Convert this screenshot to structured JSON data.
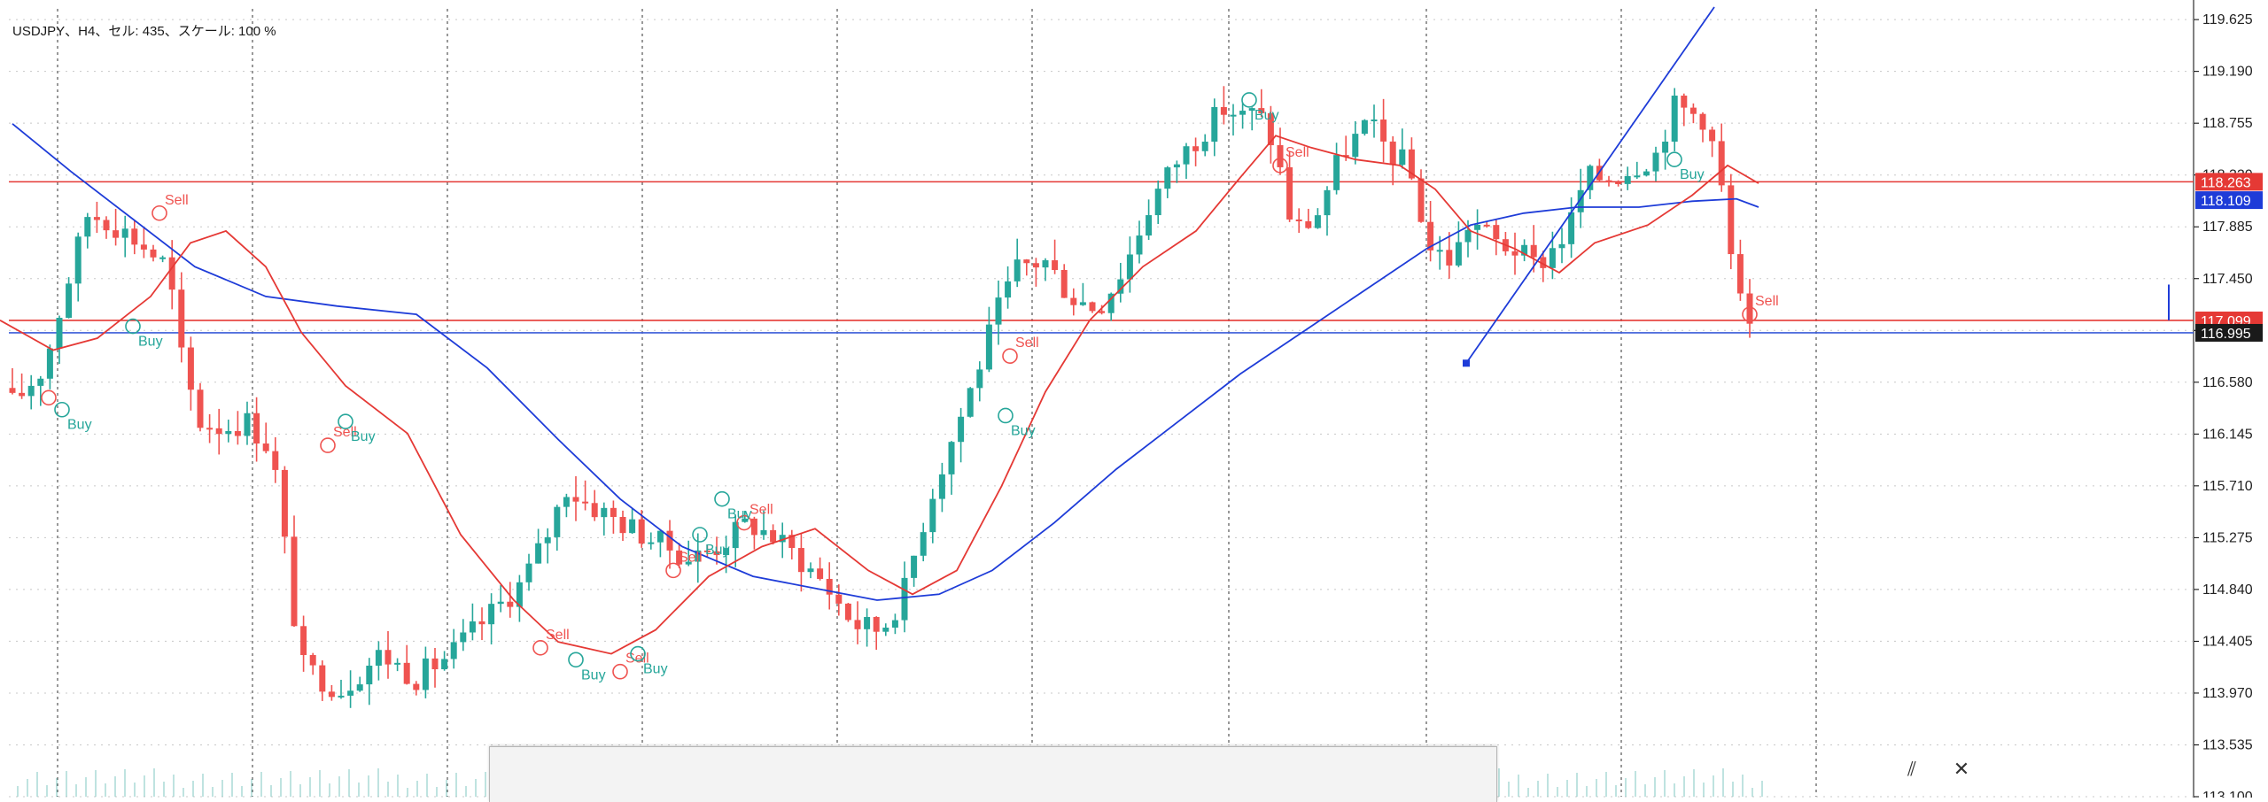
{
  "window": {
    "symbol_label": "USDJPY、H4、セル: 435、スケール: 100 %"
  },
  "colors": {
    "bull": "#26a69a",
    "bear": "#ef5350",
    "ma_fast": "#e53935",
    "ma_slow": "#1e3cd8",
    "hline": "#e53935",
    "hline_blue": "#3a5bd8",
    "grid": "#c8c8c8",
    "axis_text": "#222222"
  },
  "panel": {
    "pin_icon": "pin-icon",
    "close_icon": "close-icon",
    "pin_glyph": "⫽",
    "close_glyph": "✕"
  },
  "chart_data": {
    "type": "candlestick",
    "title": "",
    "xlabel": "",
    "ylabel": "",
    "ylim": [
      113.1,
      119.73
    ],
    "y_ticks": [
      "119.625",
      "119.190",
      "118.755",
      "118.320",
      "117.885",
      "117.450",
      "117.015",
      "116.580",
      "116.145",
      "115.710",
      "115.275",
      "114.840",
      "114.405",
      "113.970",
      "113.535",
      "113.100"
    ],
    "grid": "dotted",
    "price_tags": [
      {
        "text": "118.263",
        "value": 118.263,
        "bg": "#e53935",
        "fg": "#ffffff"
      },
      {
        "text": "118.109",
        "value": 118.109,
        "bg": "#1e3cd8",
        "fg": "#ffffff"
      },
      {
        "text": "117.099",
        "value": 117.099,
        "bg": "#e53935",
        "fg": "#ffffff"
      },
      {
        "text": "116.995",
        "value": 116.995,
        "bg": "#1a1a1a",
        "fg": "#ffffff"
      }
    ],
    "horizontal_lines": [
      {
        "value": 118.263,
        "color": "#e53935"
      },
      {
        "value": 117.099,
        "color": "#e53935"
      },
      {
        "value": 116.995,
        "color": "#3a5bd8"
      }
    ],
    "key_points": [
      [
        0,
        116.7
      ],
      [
        25,
        116.4
      ],
      [
        60,
        116.7
      ],
      [
        90,
        117.5
      ],
      [
        110,
        118.0
      ],
      [
        130,
        117.95
      ],
      [
        160,
        117.8
      ],
      [
        200,
        117.55
      ],
      [
        215,
        116.8
      ],
      [
        235,
        116.25
      ],
      [
        262,
        116.2
      ],
      [
        290,
        116.25
      ],
      [
        318,
        116.0
      ],
      [
        350,
        114.2
      ],
      [
        395,
        114.0
      ],
      [
        440,
        114.3
      ],
      [
        480,
        114.1
      ],
      [
        520,
        114.3
      ],
      [
        560,
        114.6
      ],
      [
        600,
        114.9
      ],
      [
        625,
        115.25
      ],
      [
        650,
        115.7
      ],
      [
        665,
        115.6
      ],
      [
        700,
        115.45
      ],
      [
        750,
        115.25
      ],
      [
        790,
        115.1
      ],
      [
        820,
        115.2
      ],
      [
        855,
        115.4
      ],
      [
        880,
        115.3
      ],
      [
        905,
        115.15
      ],
      [
        940,
        114.9
      ],
      [
        975,
        114.55
      ],
      [
        1005,
        114.5
      ],
      [
        1030,
        114.8
      ],
      [
        1060,
        115.6
      ],
      [
        1085,
        116.1
      ],
      [
        1110,
        116.6
      ],
      [
        1135,
        117.15
      ],
      [
        1160,
        117.55
      ],
      [
        1190,
        117.6
      ],
      [
        1220,
        117.3
      ],
      [
        1250,
        117.2
      ],
      [
        1280,
        117.55
      ],
      [
        1310,
        118.1
      ],
      [
        1340,
        118.45
      ],
      [
        1370,
        118.7
      ],
      [
        1395,
        118.9
      ],
      [
        1410,
        118.8
      ],
      [
        1430,
        118.85
      ],
      [
        1450,
        118.55
      ],
      [
        1470,
        117.85
      ],
      [
        1495,
        117.95
      ],
      [
        1525,
        118.5
      ],
      [
        1555,
        118.75
      ],
      [
        1580,
        118.5
      ],
      [
        1600,
        118.4
      ],
      [
        1625,
        117.7
      ],
      [
        1650,
        117.6
      ],
      [
        1670,
        117.95
      ],
      [
        1700,
        117.75
      ],
      [
        1720,
        117.7
      ],
      [
        1745,
        117.55
      ],
      [
        1780,
        117.85
      ],
      [
        1800,
        118.3
      ],
      [
        1830,
        118.3
      ],
      [
        1855,
        118.4
      ],
      [
        1880,
        118.5
      ],
      [
        1900,
        118.9
      ],
      [
        1935,
        118.8
      ],
      [
        1950,
        118.4
      ],
      [
        1965,
        117.6
      ],
      [
        1982,
        117.0
      ]
    ],
    "ma_fast": [
      [
        0,
        117.1
      ],
      [
        60,
        116.85
      ],
      [
        110,
        116.95
      ],
      [
        170,
        117.3
      ],
      [
        215,
        117.75
      ],
      [
        255,
        117.85
      ],
      [
        300,
        117.55
      ],
      [
        340,
        117.0
      ],
      [
        390,
        116.55
      ],
      [
        460,
        116.15
      ],
      [
        520,
        115.3
      ],
      [
        580,
        114.75
      ],
      [
        630,
        114.4
      ],
      [
        690,
        114.3
      ],
      [
        740,
        114.5
      ],
      [
        800,
        114.95
      ],
      [
        860,
        115.2
      ],
      [
        920,
        115.35
      ],
      [
        980,
        115.0
      ],
      [
        1030,
        114.8
      ],
      [
        1080,
        115.0
      ],
      [
        1130,
        115.7
      ],
      [
        1180,
        116.5
      ],
      [
        1230,
        117.1
      ],
      [
        1290,
        117.55
      ],
      [
        1350,
        117.85
      ],
      [
        1400,
        118.3
      ],
      [
        1440,
        118.65
      ],
      [
        1480,
        118.55
      ],
      [
        1530,
        118.45
      ],
      [
        1580,
        118.4
      ],
      [
        1620,
        118.2
      ],
      [
        1660,
        117.85
      ],
      [
        1710,
        117.7
      ],
      [
        1760,
        117.5
      ],
      [
        1800,
        117.75
      ],
      [
        1860,
        117.9
      ],
      [
        1910,
        118.15
      ],
      [
        1950,
        118.4
      ],
      [
        1985,
        118.25
      ]
    ],
    "ma_slow": [
      [
        14,
        118.75
      ],
      [
        80,
        118.35
      ],
      [
        150,
        117.95
      ],
      [
        220,
        117.55
      ],
      [
        300,
        117.3
      ],
      [
        380,
        117.22
      ],
      [
        470,
        117.15
      ],
      [
        550,
        116.7
      ],
      [
        630,
        116.1
      ],
      [
        700,
        115.6
      ],
      [
        770,
        115.2
      ],
      [
        850,
        114.95
      ],
      [
        920,
        114.85
      ],
      [
        990,
        114.75
      ],
      [
        1060,
        114.8
      ],
      [
        1120,
        115.0
      ],
      [
        1190,
        115.4
      ],
      [
        1260,
        115.85
      ],
      [
        1330,
        116.25
      ],
      [
        1400,
        116.65
      ],
      [
        1480,
        117.05
      ],
      [
        1550,
        117.4
      ],
      [
        1610,
        117.7
      ],
      [
        1660,
        117.9
      ],
      [
        1720,
        118.0
      ],
      [
        1780,
        118.05
      ],
      [
        1850,
        118.05
      ],
      [
        1910,
        118.1
      ],
      [
        1960,
        118.12
      ],
      [
        1985,
        118.05
      ]
    ],
    "trendline": {
      "x1": 1655,
      "y1": 116.74,
      "x2": 1935,
      "y2": 119.73,
      "color": "#1e3cd8"
    },
    "vertical_marker": {
      "x": 2448,
      "y1": 117.4,
      "y2": 117.1,
      "color": "#1e3cd8"
    },
    "signals": [
      {
        "type": "sell",
        "x": 180,
        "value": 118.0,
        "text": "Sell"
      },
      {
        "type": "buy",
        "x": 150,
        "value": 117.05,
        "text": "Buy"
      },
      {
        "type": "sell",
        "x": 55,
        "value": 116.45,
        "text": ""
      },
      {
        "type": "buy",
        "x": 70,
        "value": 116.35,
        "text": "Buy"
      },
      {
        "type": "sell",
        "x": 370,
        "value": 116.05,
        "text": "Sell"
      },
      {
        "type": "buy",
        "x": 390,
        "value": 116.25,
        "text": "Buy"
      },
      {
        "type": "sell",
        "x": 610,
        "value": 114.35,
        "text": "Sell"
      },
      {
        "type": "buy",
        "x": 650,
        "value": 114.25,
        "text": "Buy"
      },
      {
        "type": "sell",
        "x": 700,
        "value": 114.15,
        "text": "Sell"
      },
      {
        "type": "buy",
        "x": 720,
        "value": 114.3,
        "text": "Buy"
      },
      {
        "type": "sell",
        "x": 760,
        "value": 115.0,
        "text": "Sell"
      },
      {
        "type": "buy",
        "x": 790,
        "value": 115.3,
        "text": "Buy"
      },
      {
        "type": "sell",
        "x": 840,
        "value": 115.4,
        "text": "Sell"
      },
      {
        "type": "buy",
        "x": 815,
        "value": 115.6,
        "text": "Buy"
      },
      {
        "type": "sell",
        "x": 1140,
        "value": 116.8,
        "text": "Sell"
      },
      {
        "type": "buy",
        "x": 1135,
        "value": 116.3,
        "text": "Buy"
      },
      {
        "type": "buy",
        "x": 1410,
        "value": 118.95,
        "text": "Buy"
      },
      {
        "type": "sell",
        "x": 1445,
        "value": 118.4,
        "text": "Sell"
      },
      {
        "type": "buy",
        "x": 1890,
        "value": 118.45,
        "text": "Buy"
      },
      {
        "type": "sell",
        "x": 1975,
        "value": 117.15,
        "text": "Sell"
      }
    ]
  }
}
